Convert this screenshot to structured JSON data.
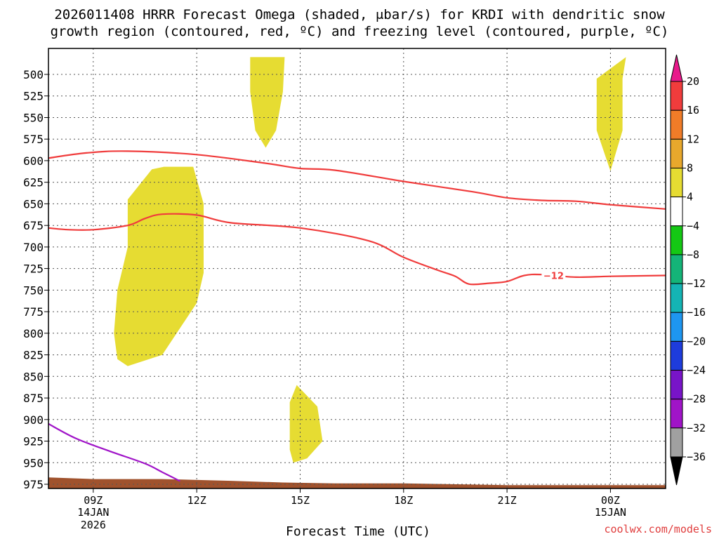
{
  "chart_data": {
    "type": "time-height cross section",
    "title_line1": "2026011408 HRRR Forecast Omega (shaded, μbar/s) for KRDI with dendritic snow",
    "title_line2": "growth region (contoured, red, ºC) and freezing level (contoured, purple, ºC)",
    "xlabel": "Forecast Time (UTC)",
    "credit": "coolwx.com/models",
    "x_range_hours": [
      7.7,
      25.6
    ],
    "p_range_hPa": [
      975,
      480
    ],
    "pressure_ticks": [
      500,
      525,
      550,
      575,
      600,
      625,
      650,
      675,
      700,
      725,
      750,
      775,
      800,
      825,
      850,
      875,
      900,
      925,
      950,
      975
    ],
    "x_ticks": [
      {
        "hour": 9,
        "label": "09Z",
        "date": "14JAN",
        "year": "2026"
      },
      {
        "hour": 12,
        "label": "12Z",
        "date": "",
        "year": ""
      },
      {
        "hour": 15,
        "label": "15Z",
        "date": "",
        "year": ""
      },
      {
        "hour": 18,
        "label": "18Z",
        "date": "",
        "year": ""
      },
      {
        "hour": 21,
        "label": "21Z",
        "date": "",
        "year": ""
      },
      {
        "hour": 24,
        "label": "00Z",
        "date": "15JAN",
        "year": ""
      }
    ],
    "colorbar": {
      "labels": [
        "20",
        "16",
        "12",
        "8",
        "4",
        "−4",
        "−8",
        "−12",
        "−16",
        "−20",
        "−24",
        "−28",
        "−32",
        "−36"
      ],
      "colors": [
        "#e8198b",
        "#f03c3c",
        "#f07c28",
        "#e8a82c",
        "#e6dc32",
        "#ffffff",
        "#14c814",
        "#14b478",
        "#14b4b4",
        "#1e96f0",
        "#1e3cdc",
        "#7814c8",
        "#a014c8",
        "#a0a0a0",
        "#000000"
      ]
    },
    "omega_fill_color": "#e6dc32",
    "omega_regions": [
      {
        "label": "4",
        "points": [
          [
            13.55,
            480
          ],
          [
            14.55,
            480
          ],
          [
            14.5,
            520
          ],
          [
            14.3,
            565
          ],
          [
            14.0,
            585
          ],
          [
            13.7,
            565
          ],
          [
            13.55,
            520
          ]
        ]
      },
      {
        "label": "4",
        "points": [
          [
            24.45,
            480
          ],
          [
            24.35,
            505
          ],
          [
            24.35,
            565
          ],
          [
            24.0,
            612
          ],
          [
            23.6,
            565
          ],
          [
            23.6,
            505
          ]
        ]
      },
      {
        "label": "4",
        "points": [
          [
            10.0,
            645
          ],
          [
            10.7,
            610
          ],
          [
            11.05,
            607
          ],
          [
            11.9,
            607
          ],
          [
            12.2,
            650
          ],
          [
            12.2,
            730
          ],
          [
            12.0,
            765
          ],
          [
            11.0,
            825
          ],
          [
            10.0,
            838
          ],
          [
            9.7,
            830
          ],
          [
            9.6,
            800
          ],
          [
            9.7,
            750
          ],
          [
            10.0,
            700
          ]
        ]
      },
      {
        "label": "4",
        "points": [
          [
            14.9,
            860
          ],
          [
            15.5,
            885
          ],
          [
            15.65,
            925
          ],
          [
            15.2,
            945
          ],
          [
            14.8,
            950
          ],
          [
            14.7,
            935
          ],
          [
            14.7,
            880
          ]
        ]
      }
    ],
    "dgz_color": "#f03c3c",
    "dgz_contours": [
      {
        "label": "",
        "points": [
          [
            7.7,
            597
          ],
          [
            8.8,
            591
          ],
          [
            10.0,
            589
          ],
          [
            12.0,
            593
          ],
          [
            14.0,
            603
          ],
          [
            15.0,
            609
          ],
          [
            16.0,
            611
          ],
          [
            18.0,
            624
          ],
          [
            20.0,
            636
          ],
          [
            21.0,
            643
          ],
          [
            22.0,
            646
          ],
          [
            23.0,
            647
          ],
          [
            24.0,
            651
          ],
          [
            25.6,
            656
          ]
        ]
      },
      {
        "label": "−12",
        "points": [
          [
            7.7,
            678
          ],
          [
            8.3,
            680
          ],
          [
            9.0,
            680
          ],
          [
            10.0,
            675
          ],
          [
            10.5,
            667
          ],
          [
            11.0,
            662
          ],
          [
            12.0,
            663
          ],
          [
            13.0,
            672
          ],
          [
            15.0,
            678
          ],
          [
            17.0,
            693
          ],
          [
            18.0,
            712
          ],
          [
            19.0,
            727
          ],
          [
            19.5,
            734
          ],
          [
            19.9,
            743
          ],
          [
            20.5,
            742
          ],
          [
            21.0,
            740
          ],
          [
            21.5,
            733
          ],
          [
            22.0,
            732
          ],
          [
            23.0,
            735
          ],
          [
            24.0,
            734
          ],
          [
            25.6,
            733
          ]
        ]
      }
    ],
    "freezing_color": "#a014c8",
    "freezing_contours": [
      {
        "label": "",
        "points": [
          [
            7.7,
            905
          ],
          [
            8.5,
            922
          ],
          [
            9.5,
            937
          ],
          [
            10.5,
            951
          ],
          [
            11.0,
            961
          ],
          [
            11.5,
            971
          ]
        ]
      }
    ],
    "terrain_color": "#a0522d",
    "terrain_points": [
      [
        7.7,
        967
      ],
      [
        9.0,
        969
      ],
      [
        11.0,
        969
      ],
      [
        13.0,
        971
      ],
      [
        14.5,
        973
      ],
      [
        16.0,
        974
      ],
      [
        18.0,
        974
      ],
      [
        21.0,
        976
      ],
      [
        25.6,
        976
      ]
    ]
  }
}
